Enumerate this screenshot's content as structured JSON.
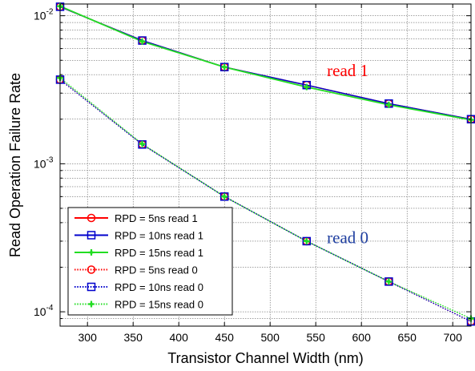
{
  "chart_data": {
    "type": "line",
    "title": "",
    "xlabel": "Transistor Channel Width (nm)",
    "ylabel": "Read Operation Failure Rate",
    "xlim": [
      270,
      720
    ],
    "ylim": [
      8e-05,
      0.012
    ],
    "yscale": "log",
    "grid": true,
    "legend_position": "bottom-left",
    "x_ticks": [
      300,
      350,
      400,
      450,
      500,
      550,
      600,
      650,
      700
    ],
    "x_tick_labels": [
      "300",
      "350",
      "400",
      "450",
      "500",
      "550",
      "600",
      "650",
      "700"
    ],
    "y_ticks": [
      {
        "value": 0.01,
        "base": "10",
        "exp": "-2"
      },
      {
        "value": 0.001,
        "base": "10",
        "exp": "-3"
      },
      {
        "value": 0.0001,
        "base": "10",
        "exp": "-4"
      }
    ],
    "x": [
      270,
      360,
      450,
      540,
      630,
      720
    ],
    "series": [
      {
        "name": "RPD = 5ns  read 1",
        "color": "#ff0000",
        "marker": "circle",
        "dash": "solid",
        "values": [
          0.0115,
          0.0068,
          0.0045,
          0.0034,
          0.00255,
          0.002
        ]
      },
      {
        "name": "RPD = 10ns read 1",
        "color": "#0000cc",
        "marker": "square",
        "dash": "solid",
        "values": [
          0.0115,
          0.0068,
          0.0045,
          0.0034,
          0.00255,
          0.002
        ]
      },
      {
        "name": "RPD = 15ns read 1",
        "color": "#22dd22",
        "marker": "plus",
        "dash": "solid",
        "values": [
          0.0116,
          0.0067,
          0.0045,
          0.0033,
          0.0025,
          0.00198
        ]
      },
      {
        "name": "RPD = 5ns  read 0",
        "color": "#ff0000",
        "marker": "circle",
        "dash": "dotted",
        "values": [
          0.0037,
          0.00135,
          0.0006,
          0.0003,
          0.00016,
          8.6e-05
        ]
      },
      {
        "name": "RPD = 10ns read 0",
        "color": "#0000cc",
        "marker": "square",
        "dash": "dotted",
        "values": [
          0.0037,
          0.00135,
          0.0006,
          0.0003,
          0.00016,
          8.6e-05
        ]
      },
      {
        "name": "RPD = 15ns read 0",
        "color": "#22dd22",
        "marker": "plus",
        "dash": "dotted",
        "values": [
          0.0038,
          0.00136,
          0.0006,
          0.0003,
          0.00016,
          9e-05
        ]
      }
    ],
    "annotations": [
      {
        "text": "read 1",
        "x": 585,
        "y": 0.0039,
        "color": "#ff0000"
      },
      {
        "text": "read 0",
        "x": 585,
        "y": 0.00029,
        "color": "#1f3fa0"
      }
    ]
  }
}
